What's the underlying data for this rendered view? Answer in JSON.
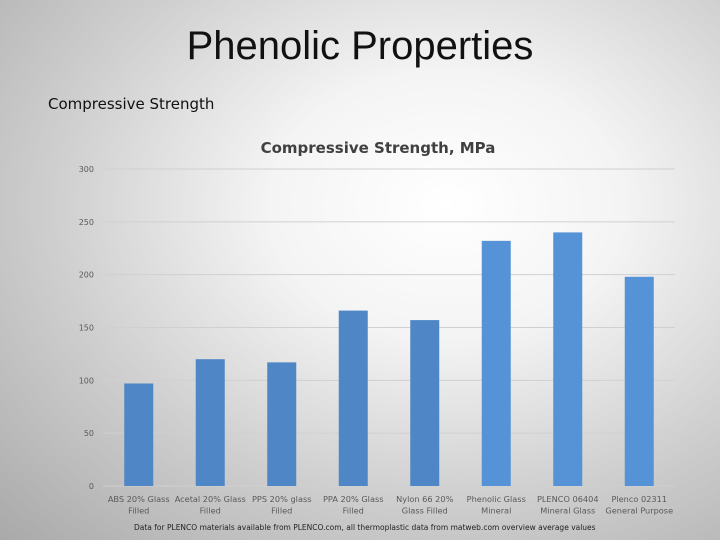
{
  "slide": {
    "title": "Phenolic Properties",
    "subtitle": "Compressive Strength",
    "footnote": "Data for PLENCO materials available from PLENCO.com, all thermoplastic data from matweb.com overview average values"
  },
  "chart_data": {
    "type": "bar",
    "title": "Compressive Strength, MPa",
    "xlabel": "",
    "ylabel": "",
    "ylim": [
      0,
      300
    ],
    "yticks": [
      0,
      50,
      100,
      150,
      200,
      250,
      300
    ],
    "grid": true,
    "categories": [
      [
        "ABS 20% Glass",
        "Filled"
      ],
      [
        "Acetal 20% Glass",
        "Filled"
      ],
      [
        "PPS 20% glass",
        "Filled"
      ],
      [
        "PPA 20% Glass",
        "Filled"
      ],
      [
        "Nylon 66 20%",
        "Glass Filled"
      ],
      [
        "Phenolic Glass",
        "Mineral"
      ],
      [
        "PLENCO 06404",
        "Mineral Glass"
      ],
      [
        "Plenco 02311",
        "General Purpose"
      ]
    ],
    "values": [
      97,
      120,
      117,
      166,
      157,
      232,
      240,
      198
    ],
    "colors": {
      "bar_thermoplastic": "#4e86c6",
      "bar_phenolic": "#5592d6",
      "grid": "#d0d0d0",
      "axis_text": "#595959",
      "title_text": "#404040"
    }
  }
}
